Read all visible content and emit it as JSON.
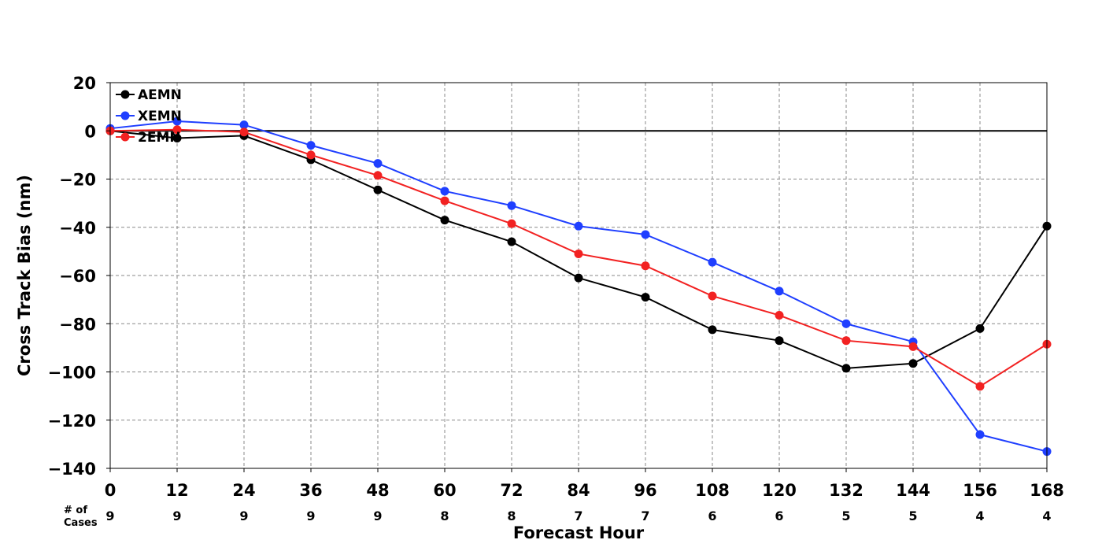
{
  "chart_data": {
    "type": "line",
    "xlabel": "Forecast Hour",
    "ylabel": "Cross Track Bias (nm)",
    "x": [
      0,
      12,
      24,
      36,
      48,
      60,
      72,
      84,
      96,
      108,
      120,
      132,
      144,
      156,
      168
    ],
    "xlim": [
      0,
      168
    ],
    "ylim": [
      -140,
      20
    ],
    "yticks": [
      20,
      0,
      -20,
      -40,
      -60,
      -80,
      -100,
      -120,
      -140
    ],
    "ytick_labels": [
      "20",
      "0",
      "−20",
      "−40",
      "−60",
      "−80",
      "−100",
      "−120",
      "−140"
    ],
    "grid": true,
    "zero_line": true,
    "legend_position": "top-left",
    "cases_label_line1": "# of",
    "cases_label_line2": "Cases",
    "cases": [
      9,
      9,
      9,
      9,
      9,
      8,
      8,
      7,
      7,
      6,
      6,
      5,
      5,
      4,
      4
    ],
    "series": [
      {
        "name": "AEMN",
        "color": "#000000",
        "values": [
          0,
          -3,
          -2,
          -12,
          -24.5,
          -37,
          -46,
          -61,
          -69,
          -82.5,
          -87,
          -98.5,
          -96.5,
          -82,
          -39.5
        ]
      },
      {
        "name": "XEMN",
        "color": "#1f3fff",
        "values": [
          1,
          4,
          2.5,
          -6,
          -13.5,
          -25,
          -31,
          -39.5,
          -43,
          -54.5,
          -66.5,
          -80,
          -87.5,
          -126,
          -133
        ]
      },
      {
        "name": "2EMN",
        "color": "#f22222",
        "values": [
          0,
          0.5,
          -0.5,
          -10,
          -18.5,
          -29,
          -38.5,
          -51,
          -56,
          -68.5,
          -76.5,
          -87,
          -89.5,
          -106,
          -88.5
        ]
      }
    ]
  }
}
